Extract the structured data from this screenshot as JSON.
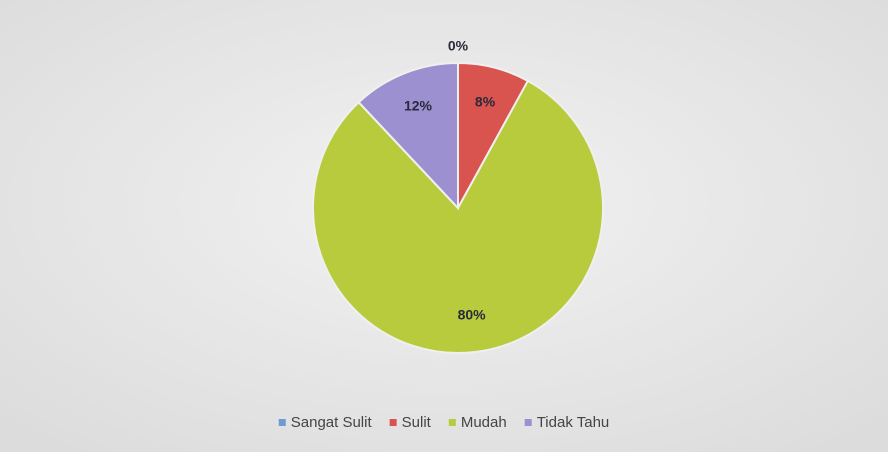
{
  "chart_data": {
    "type": "pie",
    "categories": [
      "Sangat Sulit",
      "Sulit",
      "Mudah",
      "Tidak Tahu"
    ],
    "values": [
      0,
      8,
      80,
      12
    ],
    "value_labels": [
      "0%",
      "8%",
      "80%",
      "12%"
    ],
    "colors": [
      "#6f9bd1",
      "#d9534f",
      "#b7cb3c",
      "#9c90d0"
    ],
    "legend": "bottom"
  }
}
